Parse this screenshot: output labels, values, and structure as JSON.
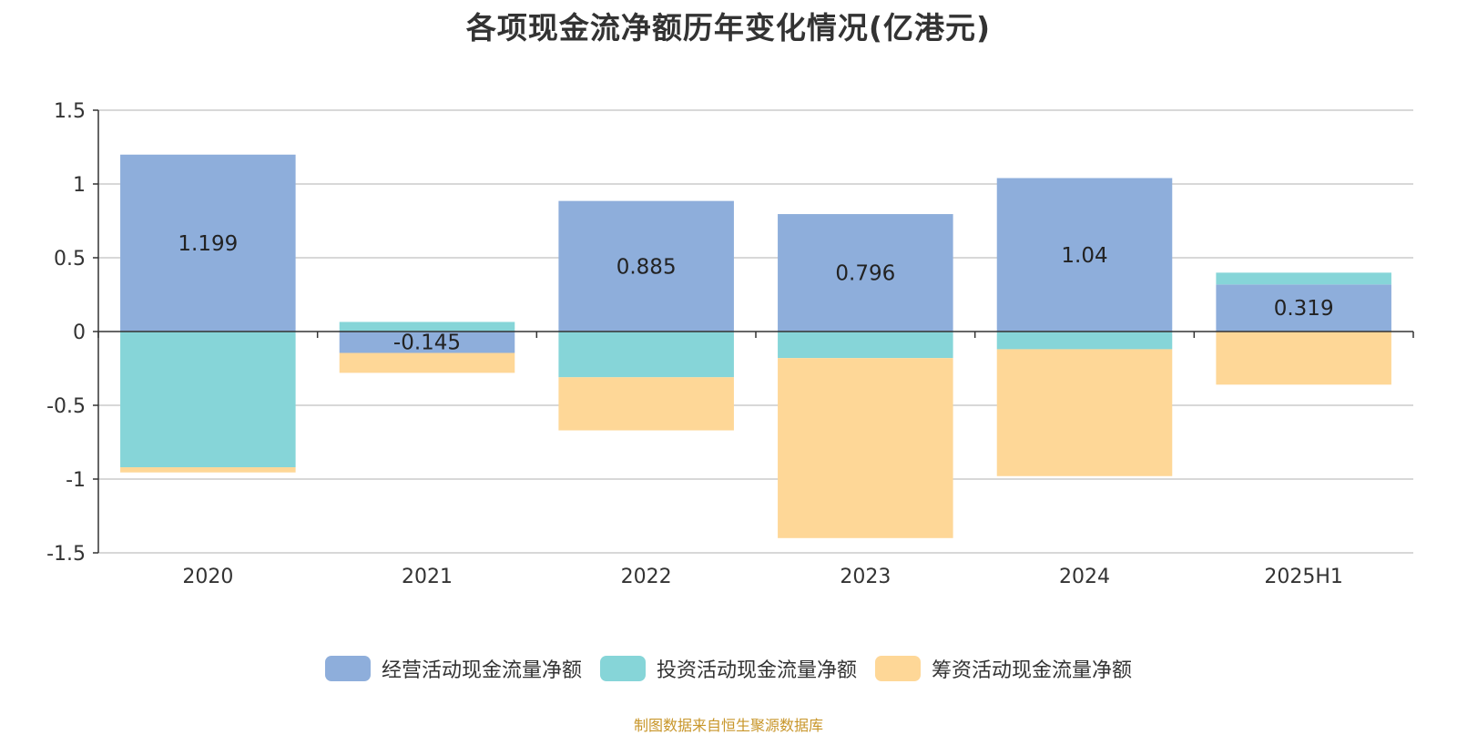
{
  "chart_data": {
    "type": "bar",
    "stacked": true,
    "title": "各项现金流净额历年变化情况(亿港元)",
    "categories": [
      "2020",
      "2021",
      "2022",
      "2023",
      "2024",
      "2025H1"
    ],
    "series": [
      {
        "name": "经营活动现金流量净额",
        "color": "#8eaedb",
        "values": [
          1.199,
          -0.145,
          0.885,
          0.796,
          1.04,
          0.319
        ]
      },
      {
        "name": "投资活动现金流量净额",
        "color": "#86d5d8",
        "values": [
          -0.92,
          0.065,
          -0.31,
          -0.18,
          -0.12,
          0.08
        ]
      },
      {
        "name": "筹资活动现金流量净额",
        "color": "#fed797",
        "values": [
          -0.035,
          -0.135,
          -0.36,
          -1.22,
          -0.86,
          -0.36
        ]
      }
    ],
    "data_labels": [
      "1.199",
      "-0.145",
      "0.885",
      "0.796",
      "1.04",
      "0.319"
    ],
    "yticks": [
      "1.5",
      "1",
      "0.5",
      "0",
      "-0.5",
      "-1",
      "-1.5"
    ],
    "ylim": [
      -1.5,
      1.5
    ],
    "grid": true,
    "legend_position": "bottom-center",
    "source": "制图数据来自恒生聚源数据库"
  }
}
